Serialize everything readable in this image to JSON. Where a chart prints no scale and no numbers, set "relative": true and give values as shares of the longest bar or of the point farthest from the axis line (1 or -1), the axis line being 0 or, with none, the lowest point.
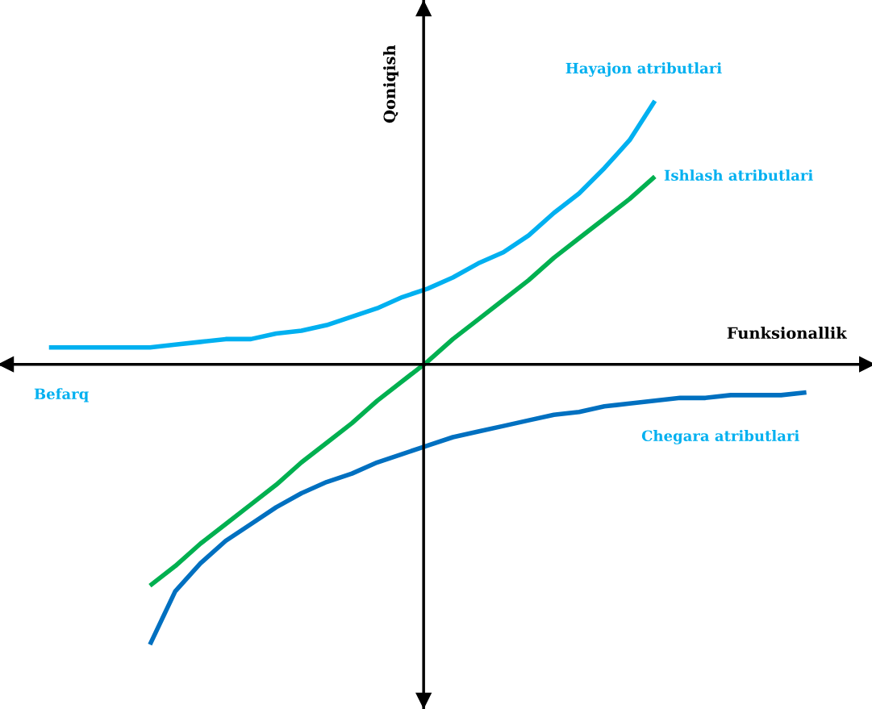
{
  "chart_data": {
    "type": "line",
    "relative": true,
    "xlabel": "Funksionallik",
    "ylabel": "Qoniqish",
    "categories": [
      null,
      null,
      null,
      null,
      null,
      null,
      null,
      null,
      null,
      null,
      null,
      null,
      null,
      null,
      null,
      null,
      null,
      null,
      null,
      null,
      null,
      null,
      null,
      null,
      null,
      null,
      null,
      null,
      null,
      null,
      null
    ],
    "series": [
      {
        "name": "Hayajon atributlari",
        "color": "#00b0f0",
        "values": [
          0.06,
          0.06,
          0.06,
          0.06,
          0.06,
          0.07,
          0.08,
          0.09,
          0.09,
          0.11,
          0.12,
          0.14,
          0.17,
          0.2,
          0.24,
          0.27,
          0.31,
          0.36,
          0.4,
          0.46,
          0.54,
          0.61,
          0.7,
          0.8,
          0.94,
          null,
          null,
          null,
          null,
          null,
          null
        ]
      },
      {
        "name": "Ishlash atributlari",
        "color": "#00b050",
        "values": [
          null,
          null,
          null,
          null,
          -0.79,
          -0.72,
          -0.64,
          -0.57,
          -0.5,
          -0.43,
          -0.35,
          -0.28,
          -0.21,
          -0.13,
          -0.06,
          0.01,
          0.09,
          0.16,
          0.23,
          0.3,
          0.38,
          0.45,
          0.52,
          0.59,
          0.67,
          null,
          null,
          null,
          null,
          null,
          null
        ]
      },
      {
        "name": "Chegara atributlari",
        "color": "#0070c0",
        "values": [
          null,
          null,
          null,
          null,
          -1.0,
          -0.81,
          -0.71,
          -0.63,
          -0.57,
          -0.51,
          -0.46,
          -0.42,
          -0.39,
          -0.35,
          -0.32,
          -0.29,
          -0.26,
          -0.24,
          -0.22,
          -0.2,
          -0.18,
          -0.17,
          -0.15,
          -0.14,
          -0.13,
          -0.12,
          -0.12,
          -0.11,
          -0.11,
          -0.11,
          -0.1
        ]
      }
    ],
    "annotations": [
      "Befarq"
    ],
    "legend": false
  }
}
